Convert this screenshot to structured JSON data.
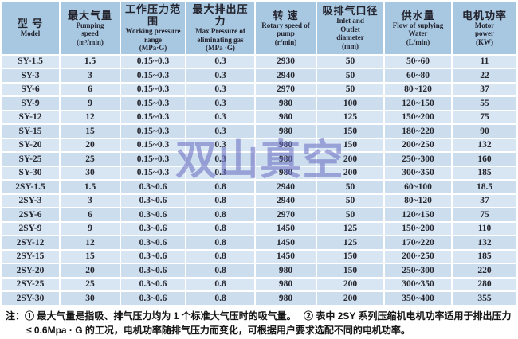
{
  "table": {
    "columns": [
      {
        "zh": "型 号",
        "en_lines": [
          "Model"
        ]
      },
      {
        "zh": "最大气量",
        "en_lines": [
          "Pumping",
          "speed",
          "(m³/min)"
        ]
      },
      {
        "zh": "工作压力范围",
        "en_lines": [
          "Working pressure",
          "range",
          "(MPa·G)"
        ]
      },
      {
        "zh": "最大排出压力",
        "en_lines": [
          "Max  Pressure of",
          "eliminating gas",
          "(MPa ·G)"
        ]
      },
      {
        "zh": "转 速",
        "en_lines": [
          "Rotary speed of",
          "pump",
          "(r/min)"
        ]
      },
      {
        "zh": "吸排气口径",
        "en_lines": [
          "Inlet and",
          "Outlet",
          "diameter",
          "(mm)"
        ]
      },
      {
        "zh": "供水量",
        "en_lines": [
          "Flow of suplying",
          "Water",
          "(L/min)"
        ]
      },
      {
        "zh": "电机功率",
        "en_lines": [
          "Motor",
          "power",
          "(KW)"
        ]
      }
    ],
    "rows": [
      [
        "SY-1.5",
        "1.5",
        "0.15~0.3",
        "0.3",
        "2930",
        "50",
        "50~60",
        "11"
      ],
      [
        "SY-3",
        "3",
        "0.15~0.3",
        "0.3",
        "2940",
        "50",
        "60~80",
        "22"
      ],
      [
        "SY-6",
        "6",
        "0.15~0.3",
        "0.3",
        "2970",
        "50",
        "80~120",
        "37"
      ],
      [
        "SY-9",
        "9",
        "0.15~0.3",
        "0.3",
        "980",
        "100",
        "120~150",
        "55"
      ],
      [
        "SY-12",
        "12",
        "0.15~0.3",
        "0.3",
        "980",
        "125",
        "150~200",
        "75"
      ],
      [
        "SY-15",
        "15",
        "0.15~0.3",
        "0.3",
        "980",
        "150",
        "180~220",
        "90"
      ],
      [
        "SY-20",
        "20",
        "0.15~0.3",
        "0.3",
        "980",
        "150",
        "200~250",
        "132"
      ],
      [
        "SY-25",
        "25",
        "0.15~0.3",
        "0.3",
        "980",
        "200",
        "250~300",
        "160"
      ],
      [
        "SY-30",
        "30",
        "0.15~0.3",
        "0.3",
        "980",
        "200",
        "300~350",
        "185"
      ],
      [
        "2SY-1.5",
        "1.5",
        "0.3~0.6",
        "0.8",
        "2940",
        "50",
        "60~100",
        "18.5"
      ],
      [
        "2SY-3",
        "3",
        "0.3~0.6",
        "0.8",
        "2940",
        "50",
        "80~120",
        "37"
      ],
      [
        "2SY-6",
        "6",
        "0.3~0.6",
        "0.8",
        "2970",
        "50",
        "120~150",
        "75"
      ],
      [
        "2SY-9",
        "9",
        "0.3~0.6",
        "0.8",
        "1450",
        "125",
        "150~200",
        "110"
      ],
      [
        "2SY-12",
        "12",
        "0.3~0.6",
        "0.8",
        "1450",
        "125",
        "170~220",
        "132"
      ],
      [
        "2SY-15",
        "15",
        "0.3~0.6",
        "0.8",
        "1450",
        "150",
        "200~250",
        "185"
      ],
      [
        "2SY-20",
        "20",
        "0.3~0.6",
        "0.8",
        "980",
        "150",
        "250~300",
        "220"
      ],
      [
        "2SY-25",
        "25",
        "0.3~0.6",
        "0.8",
        "980",
        "200",
        "300~350",
        "280"
      ],
      [
        "2SY-30",
        "30",
        "0.3~0.6",
        "0.8",
        "980",
        "200",
        "350~400",
        "355"
      ]
    ]
  },
  "watermark_text": "双山真空",
  "notes": {
    "line1": "注：① 最大气量是指吸、排气压力均为 1 个标准大气压时的吸气量。　 ② 表中 2SY 系列压缩机电机功率适用于排出压力",
    "line2": "≤ 0.6Mpa · G 的工况，电机功率随排气压力而变化，可根据用户要求选配不同的电机功率。"
  },
  "colors": {
    "header_bg": "#a8c8e1",
    "row_light": "#d8e6f3",
    "row_dark": "#ccdeee",
    "watermark": "#6a70c3",
    "text": "#26262e"
  }
}
